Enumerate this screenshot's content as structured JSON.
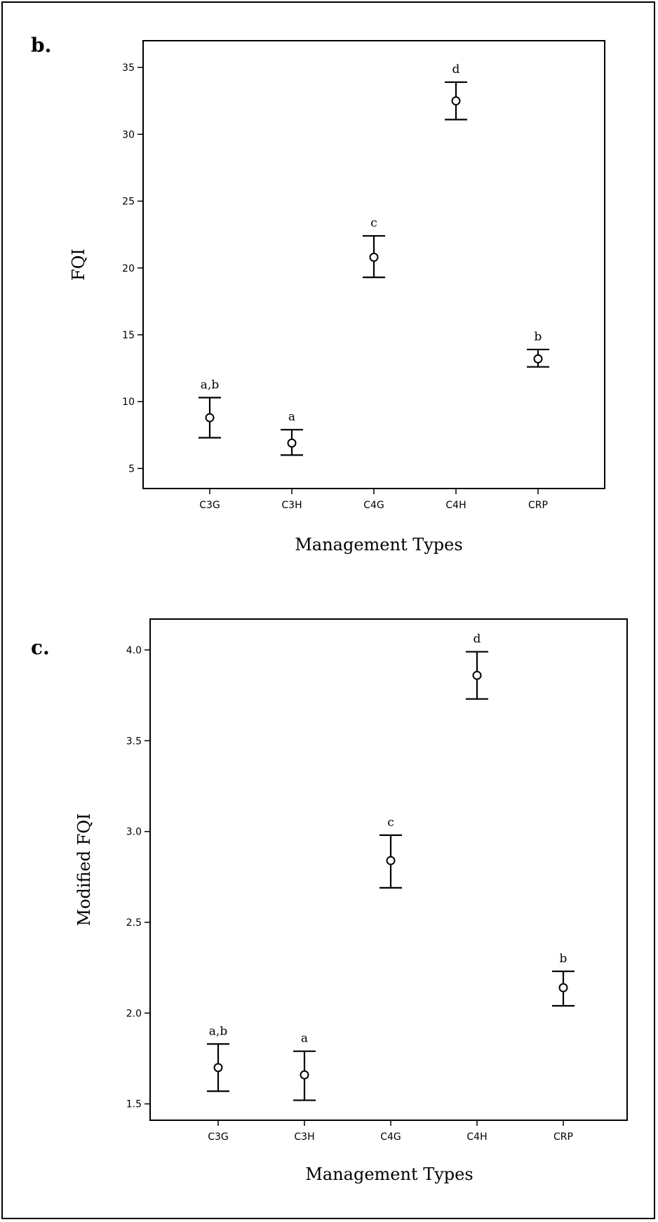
{
  "chart_data": [
    {
      "type": "scatter",
      "panel_label": "b.",
      "xlabel": "Management Types",
      "ylabel": "FQI",
      "categories": [
        "C3G",
        "C3H",
        "C4G",
        "C4H",
        "CRP"
      ],
      "ylim": [
        3.5,
        37
      ],
      "yticks": [
        5,
        10,
        15,
        20,
        25,
        30,
        35
      ],
      "ytick_labels": [
        "5",
        "10",
        "15",
        "20",
        "25",
        "30",
        "35"
      ],
      "grid": false,
      "series": [
        {
          "mean": [
            8.8,
            6.9,
            20.8,
            32.5,
            13.2
          ],
          "lower": [
            7.3,
            6.0,
            19.3,
            31.1,
            12.6
          ],
          "upper": [
            10.3,
            7.9,
            22.4,
            33.9,
            13.9
          ],
          "group_labels": [
            "a,b",
            "a",
            "c",
            "d",
            "b"
          ]
        }
      ]
    },
    {
      "type": "scatter",
      "panel_label": "c.",
      "xlabel": "Management Types",
      "ylabel": "Modified FQI",
      "categories": [
        "C3G",
        "C3H",
        "C4G",
        "C4H",
        "CRP"
      ],
      "ylim": [
        1.41,
        4.17
      ],
      "yticks": [
        1.5,
        2.0,
        2.5,
        3.0,
        3.5,
        4.0
      ],
      "ytick_labels": [
        "1.5",
        "2.0",
        "2.5",
        "3.0",
        "3.5",
        "4.0"
      ],
      "grid": false,
      "series": [
        {
          "mean": [
            1.7,
            1.66,
            2.84,
            3.86,
            2.14
          ],
          "lower": [
            1.57,
            1.52,
            2.69,
            3.73,
            2.04
          ],
          "upper": [
            1.83,
            1.79,
            2.98,
            3.99,
            2.23
          ],
          "group_labels": [
            "a,b",
            "a",
            "c",
            "d",
            "b"
          ]
        }
      ]
    }
  ]
}
